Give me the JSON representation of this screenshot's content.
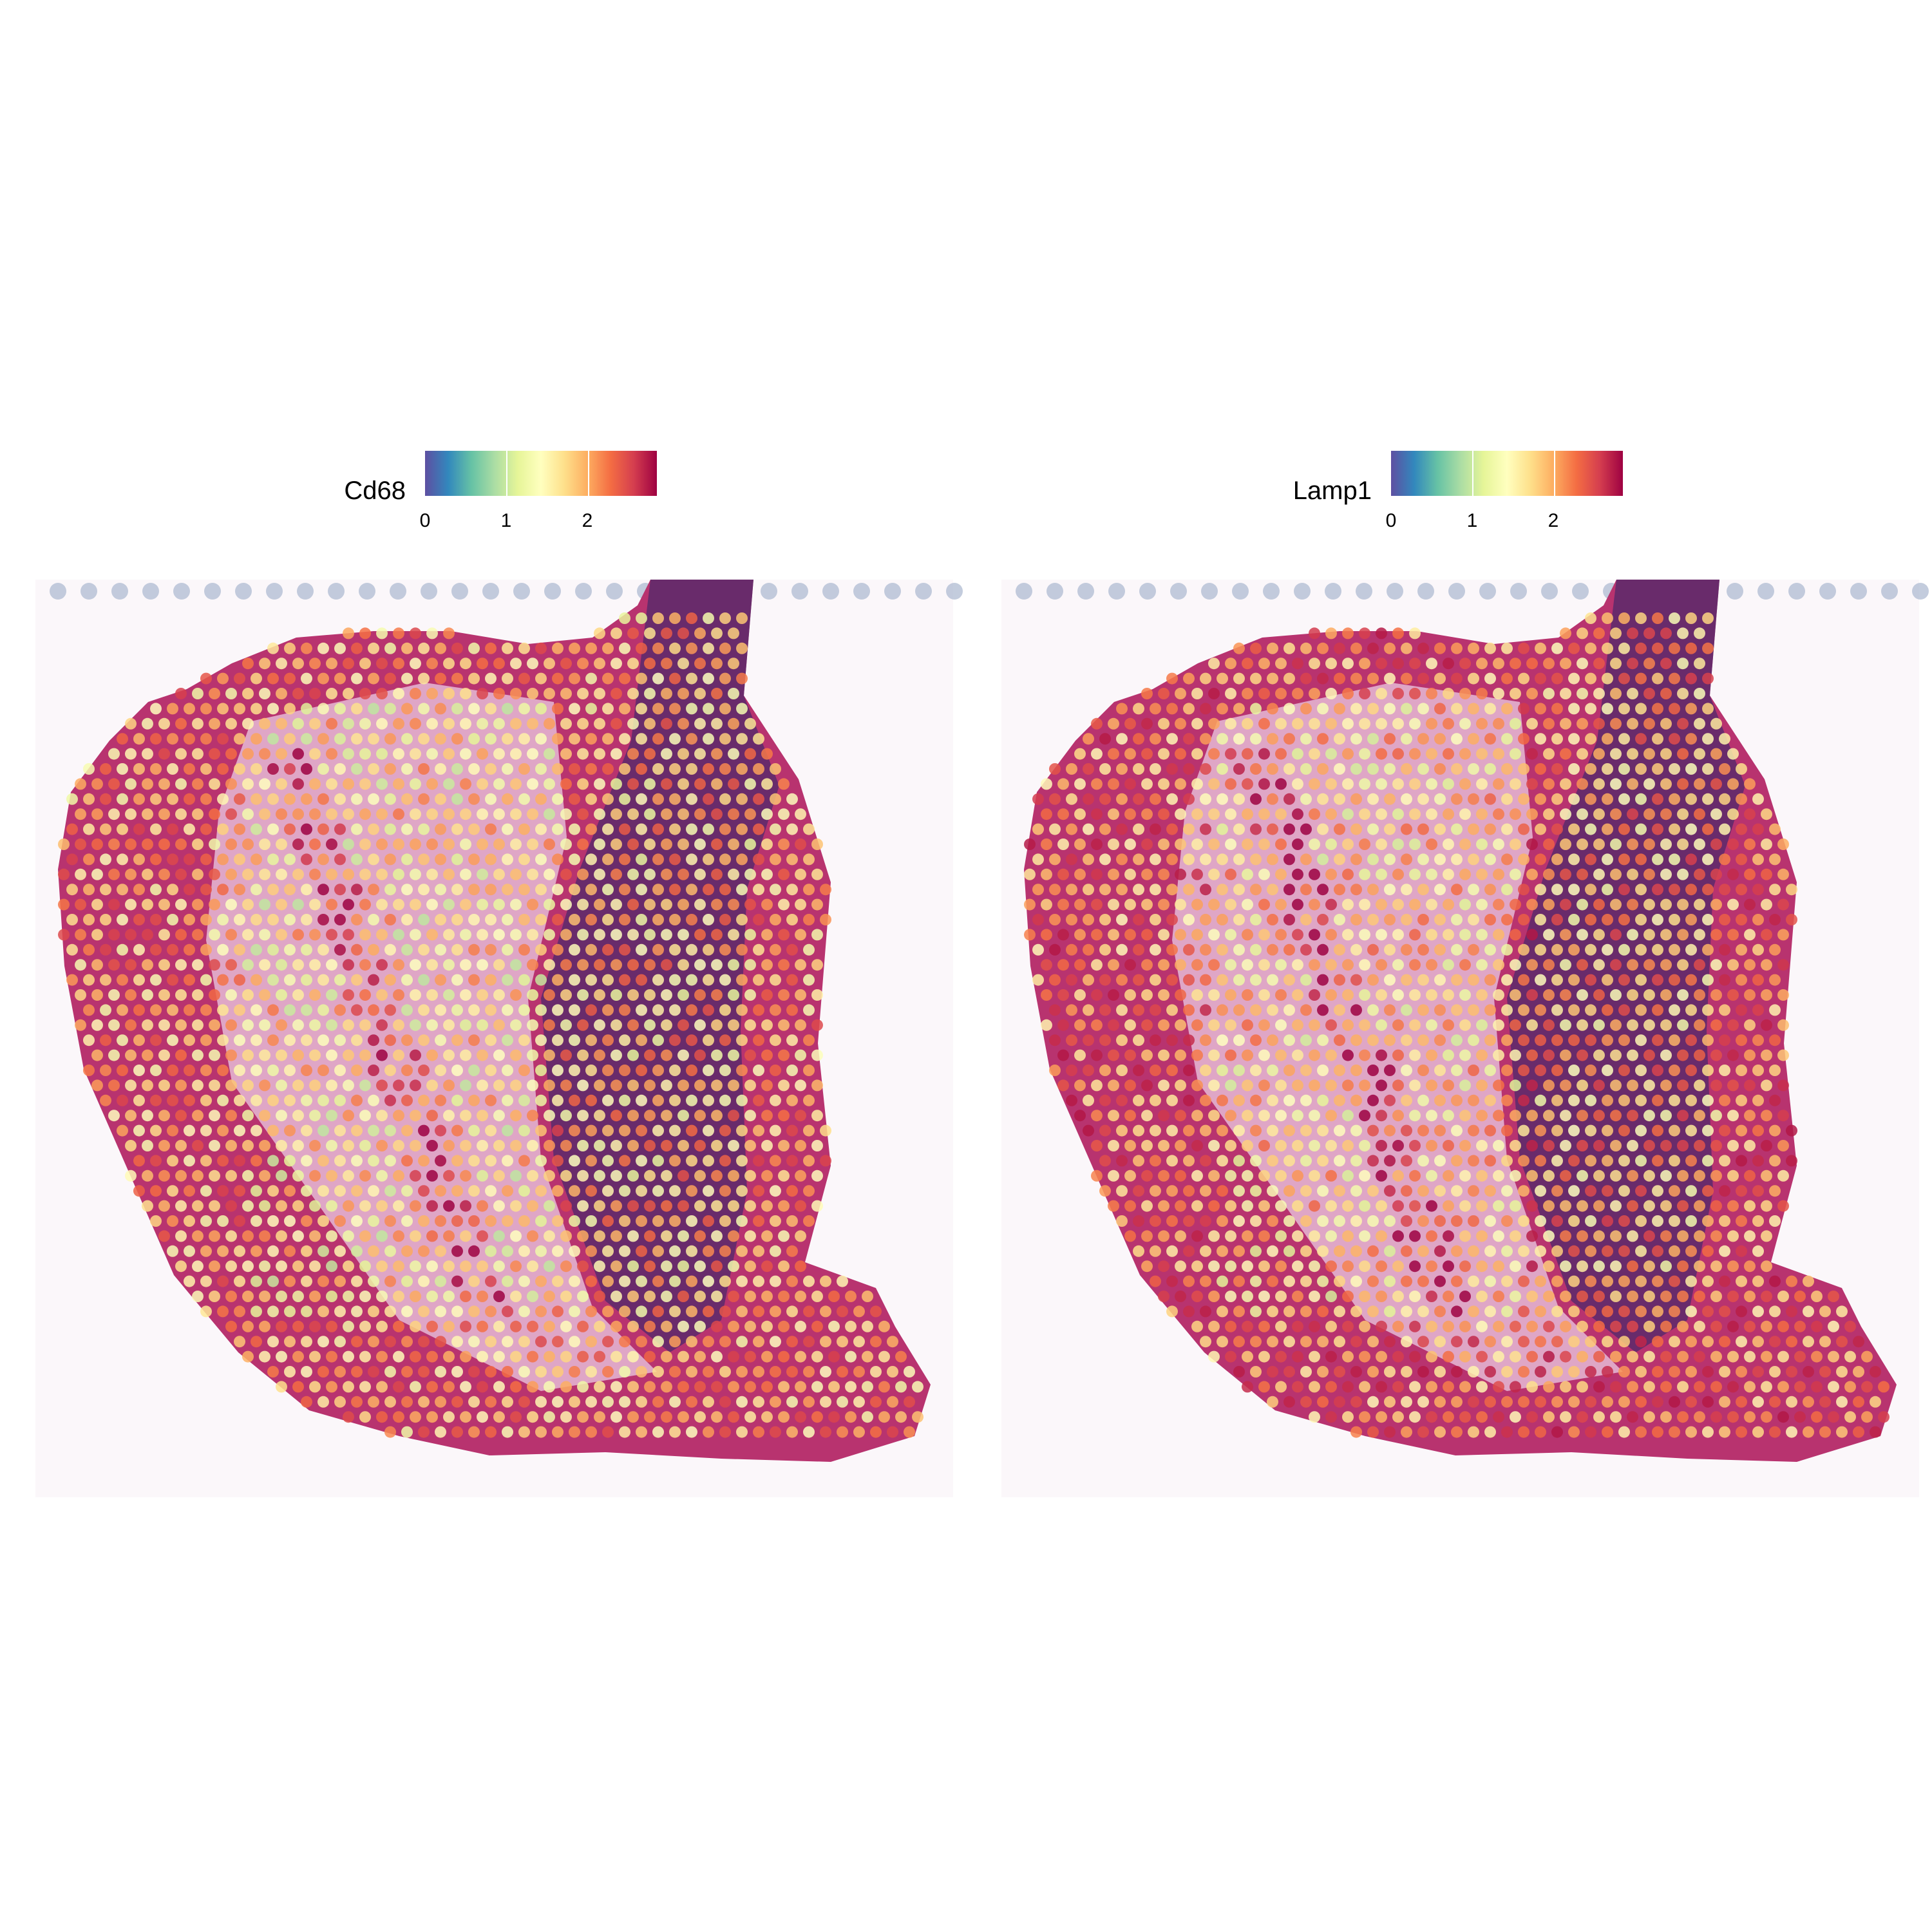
{
  "chart_data": [
    {
      "type": "heatmap",
      "panel": "left",
      "feature": "Cd68",
      "legend": {
        "title": "Cd68",
        "ticks": [
          0,
          1,
          2
        ],
        "range": [
          0,
          2.85
        ],
        "palette": [
          "#5E4FA2",
          "#3288BD",
          "#66C2A5",
          "#ABDDA4",
          "#E6F598",
          "#FFFFBF",
          "#FEE08B",
          "#FDAE61",
          "#F46D43",
          "#D53E4F",
          "#9E0142"
        ],
        "placement": "top"
      },
      "spot_values_summary": {
        "cortex_layer": 1.9,
        "hippocampus_white_region": 1.6,
        "ca_band": 2.4,
        "thalamus_dark": 1.8
      }
    },
    {
      "type": "heatmap",
      "panel": "right",
      "feature": "Lamp1",
      "legend": {
        "title": "Lamp1",
        "ticks": [
          0,
          1,
          2
        ],
        "range": [
          0,
          2.85
        ],
        "palette": [
          "#5E4FA2",
          "#3288BD",
          "#66C2A5",
          "#ABDDA4",
          "#E6F598",
          "#FFFFBF",
          "#FEE08B",
          "#FDAE61",
          "#F46D43",
          "#D53E4F",
          "#9E0142"
        ],
        "placement": "top"
      },
      "spot_values_summary": {
        "cortex_layer": 2.1,
        "hippocampus_white_region": 1.7,
        "ca_band": 2.5,
        "thalamus_dark": 1.9
      }
    }
  ],
  "colors": {
    "tissue_pink": "#b8336f",
    "tissue_dark": "#5a2a6b",
    "tissue_light": "#e8c3dc",
    "background_fiducial": "#a9b6cf"
  }
}
